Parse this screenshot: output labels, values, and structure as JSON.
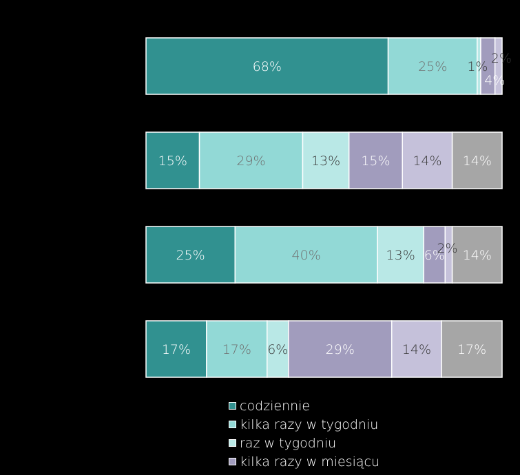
{
  "chart_data": {
    "type": "bar",
    "orientation": "horizontal",
    "stacked": true,
    "percent_stacked": true,
    "title": "",
    "xlabel": "",
    "ylabel": "",
    "xlim": [
      0,
      100
    ],
    "grid": false,
    "legend_position": "bottom",
    "categories": [
      "",
      "",
      "",
      ""
    ],
    "series": [
      {
        "name": "codziennie",
        "color": "#319190",
        "values": [
          68,
          15,
          25,
          17
        ],
        "labels": [
          "68%",
          "15%",
          "25%",
          "17%"
        ]
      },
      {
        "name": "kilka razy w tygodniu",
        "color": "#92d9d6",
        "values": [
          25,
          29,
          40,
          17
        ],
        "labels": [
          "25%",
          "29%",
          "40%",
          "17%"
        ]
      },
      {
        "name": "raz w tygodniu",
        "color": "#b9e8e6",
        "values": [
          1,
          13,
          13,
          6
        ],
        "labels": [
          "1%",
          "13%",
          "13%",
          "6%"
        ]
      },
      {
        "name": "kilka razy w miesiącu",
        "color": "#a19cbd",
        "values": [
          4,
          15,
          6,
          29
        ],
        "labels": [
          "4%",
          "15%",
          "6%",
          "29%"
        ]
      },
      {
        "name": "",
        "color": "#c5c1da",
        "values": [
          2,
          14,
          2,
          14
        ],
        "labels": [
          "2%",
          "14%",
          "2%",
          "14%"
        ]
      },
      {
        "name": "",
        "color": "#a6a6a6",
        "values": [
          0,
          14,
          14,
          17
        ],
        "labels": [
          "",
          "14%",
          "14%",
          "17%"
        ]
      }
    ]
  }
}
